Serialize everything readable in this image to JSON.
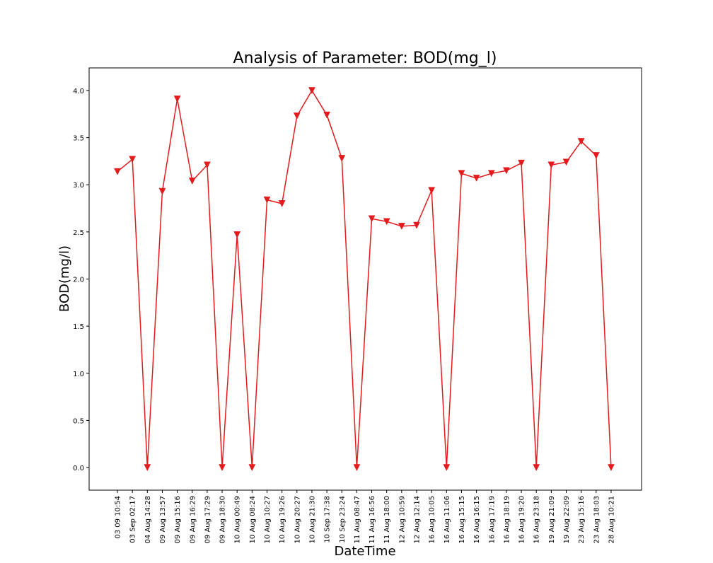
{
  "chart_data": {
    "type": "line",
    "title": "Analysis of Parameter: BOD(mg_l)",
    "xlabel": "DateTime",
    "ylabel": "BOD(mg/l)",
    "ylim": [
      -0.24,
      4.24
    ],
    "yticks": [
      0.0,
      0.5,
      1.0,
      1.5,
      2.0,
      2.5,
      3.0,
      3.5,
      4.0
    ],
    "ytick_labels": [
      "0.0",
      "0.5",
      "1.0",
      "1.5",
      "2.0",
      "2.5",
      "3.0",
      "3.5",
      "4.0"
    ],
    "grid": false,
    "legend": "none",
    "series": [
      {
        "color": "#e41a1c",
        "marker": "triangle-down",
        "values": [
          3.14,
          3.27,
          0.0,
          2.93,
          3.91,
          3.04,
          3.21,
          0.0,
          2.47,
          0.0,
          2.84,
          2.8,
          3.73,
          4.0,
          3.74,
          3.28,
          0.0,
          2.64,
          2.61,
          2.56,
          2.57,
          2.94,
          0.0,
          3.12,
          3.07,
          3.12,
          3.15,
          3.23,
          0.0,
          3.21,
          3.24,
          3.46,
          3.31,
          0.0
        ]
      }
    ],
    "categories": [
      "03 09 10:54",
      "03 Sep 02:17",
      "04 Aug 14:28",
      "09 Aug 13:57",
      "09 Aug 15:16",
      "09 Aug 16:29",
      "09 Aug 17:29",
      "09 Aug 18:30",
      "10 Aug 00:49",
      "10 Aug 08:24",
      "10 Aug 10:27",
      "10 Aug 19:26",
      "10 Aug 20:27",
      "10 Aug 21:30",
      "10 Sep 17:38",
      "10 Sep 23:24",
      "11 Aug 08:47",
      "11 Aug 16:56",
      "11 Aug 18:00",
      "12 Aug 10:59",
      "12 Aug 12:14",
      "16 Aug 10:05",
      "16 Aug 11:06",
      "16 Aug 15:15",
      "16 Aug 16:15",
      "16 Aug 17:19",
      "16 Aug 18:19",
      "16 Aug 19:20",
      "16 Aug 23:18",
      "19 Aug 21:09",
      "19 Aug 22:09",
      "23 Aug 15:16",
      "23 Aug 18:03",
      "28 Aug 10:21"
    ]
  }
}
